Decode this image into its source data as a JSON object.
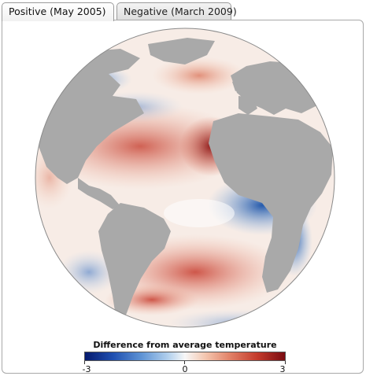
{
  "tabs": [
    {
      "label": "Positive (May 2005)",
      "active": true
    },
    {
      "label": "Negative (March 2009)",
      "active": false
    }
  ],
  "legend": {
    "title": "Difference from average temperature (°C)",
    "ticks": [
      "-3",
      "0",
      "3"
    ],
    "scale": {
      "min": -3,
      "max": 3
    }
  },
  "colors": {
    "land": "#a9a9a9",
    "ocean_neutral": "#f7f7f7",
    "warm_max": "#7a0b10",
    "cold_max": "#061a6e"
  }
}
